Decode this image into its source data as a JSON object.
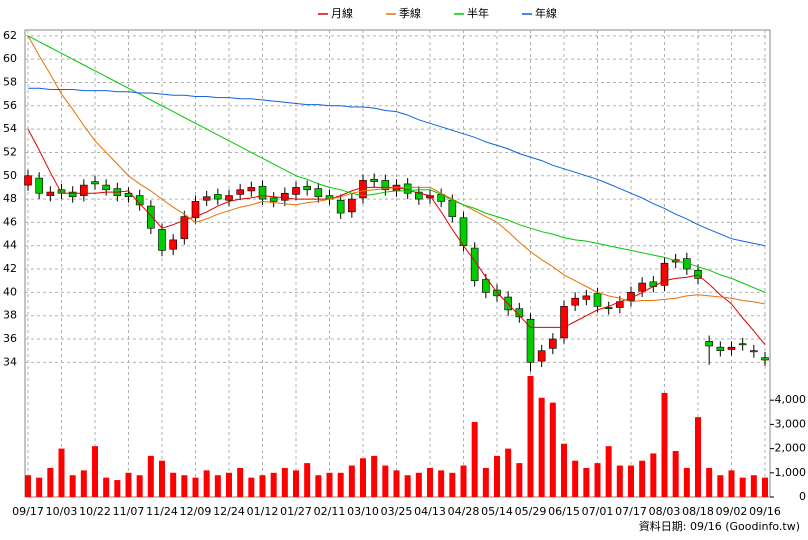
{
  "chart_data": {
    "type": "candlestick",
    "categories": [
      "09/17",
      null,
      null,
      "10/03",
      null,
      null,
      "10/22",
      null,
      null,
      "11/07",
      null,
      null,
      "11/24",
      null,
      null,
      "12/09",
      null,
      null,
      "12/24",
      null,
      null,
      "01/12",
      null,
      null,
      "01/27",
      null,
      null,
      "02/11",
      null,
      null,
      "03/10",
      null,
      null,
      "03/25",
      null,
      null,
      "04/13",
      null,
      null,
      "04/28",
      null,
      null,
      "05/14",
      null,
      null,
      "05/29",
      null,
      null,
      "06/15",
      null,
      null,
      "07/01",
      null,
      null,
      "07/17",
      null,
      null,
      "08/03",
      null,
      null,
      "08/18",
      null,
      null,
      "09/02",
      null,
      null,
      "09/16"
    ],
    "open": [
      49.2,
      49.8,
      48.3,
      48.8,
      48.6,
      48.3,
      49.5,
      49.2,
      48.9,
      48.5,
      48.3,
      47.4,
      45.4,
      43.7,
      44.6,
      46.4,
      47.9,
      48.4,
      47.9,
      48.4,
      48.7,
      49.1,
      48.1,
      47.9,
      48.4,
      49.1,
      48.9,
      48.3,
      47.9,
      46.9,
      48.1,
      49.7,
      49.6,
      48.7,
      49.3,
      48.6,
      48.1,
      48.4,
      47.9,
      46.4,
      43.8,
      41.1,
      40.2,
      39.6,
      38.6,
      37.7,
      34.1,
      35.2,
      36.1,
      38.9,
      39.4,
      39.9,
      38.7,
      38.7,
      39.3,
      40.1,
      40.9,
      40.6,
      42.6,
      42.9,
      41.9,
      35.8,
      35.3,
      35.1,
      35.6,
      35.0,
      34.4
    ],
    "high": [
      50.5,
      50.3,
      49.1,
      49.3,
      49.1,
      49.7,
      50.0,
      49.7,
      49.4,
      49.0,
      48.8,
      47.9,
      45.9,
      45.0,
      47.0,
      48.3,
      48.7,
      48.9,
      48.8,
      49.3,
      49.5,
      49.6,
      48.6,
      49.0,
      49.5,
      49.6,
      49.4,
      48.8,
      48.4,
      48.5,
      50.1,
      50.2,
      50.1,
      49.7,
      49.8,
      49.1,
      48.8,
      48.9,
      48.4,
      46.9,
      44.3,
      41.6,
      40.7,
      40.1,
      39.1,
      38.2,
      35.5,
      36.5,
      39.3,
      40.0,
      40.2,
      40.4,
      39.2,
      39.7,
      40.5,
      41.3,
      41.4,
      43.0,
      43.3,
      43.4,
      42.4,
      36.3,
      35.8,
      35.8,
      36.1,
      35.5,
      34.9
    ],
    "low": [
      48.7,
      48.0,
      47.8,
      48.0,
      47.7,
      47.8,
      48.8,
      48.3,
      47.8,
      47.7,
      47.0,
      45.0,
      43.1,
      43.2,
      44.1,
      45.9,
      47.4,
      47.5,
      47.4,
      47.9,
      48.2,
      47.5,
      47.3,
      47.4,
      47.9,
      48.3,
      47.7,
      47.5,
      46.3,
      46.4,
      47.6,
      49.0,
      48.3,
      48.2,
      48.0,
      47.5,
      47.6,
      47.3,
      46.0,
      43.5,
      40.5,
      39.5,
      39.2,
      38.0,
      37.4,
      33.2,
      33.6,
      34.7,
      35.6,
      38.4,
      38.9,
      38.3,
      38.1,
      38.2,
      38.8,
      39.6,
      40.0,
      40.1,
      42.1,
      41.5,
      40.7,
      33.8,
      34.5,
      34.6,
      35.0,
      34.4,
      33.7
    ],
    "close": [
      50,
      48.5,
      48.6,
      48.5,
      48.2,
      49.2,
      49.3,
      48.8,
      48.3,
      48.2,
      47.5,
      45.5,
      43.6,
      44.5,
      46.5,
      47.8,
      48.2,
      48.0,
      48.3,
      48.8,
      49.0,
      48.0,
      47.8,
      48.5,
      49.0,
      48.8,
      48.2,
      48.0,
      46.8,
      48.0,
      49.6,
      49.5,
      48.8,
      49.2,
      48.5,
      48.0,
      48.3,
      47.8,
      46.5,
      44.0,
      41.0,
      40.0,
      39.7,
      38.5,
      37.9,
      34.0,
      35.0,
      36.0,
      38.8,
      39.5,
      39.7,
      38.8,
      38.6,
      39.2,
      40.0,
      40.8,
      40.5,
      42.5,
      42.8,
      42.0,
      41.2,
      35.4,
      35.0,
      35.3,
      35.5,
      34.9,
      34.2
    ],
    "up_color": "#ff0000",
    "down_color": "#00cc00",
    "series": [
      {
        "name": "月線",
        "color": "#dd0000",
        "values": [
          54,
          52.2,
          50.3,
          48.5,
          48.5,
          48.5,
          48.5,
          48.6,
          48.6,
          48.7,
          47.6,
          46.6,
          45.5,
          45.8,
          46.2,
          46.5,
          46.9,
          47.4,
          47.8,
          48.0,
          48.1,
          48.3,
          48.2,
          48.1,
          48.0,
          48.0,
          48.0,
          48.0,
          48.3,
          48.7,
          49.0,
          49.0,
          49.0,
          49.0,
          48.8,
          48.5,
          48.3,
          46.9,
          45.4,
          44.0,
          42.7,
          41.3,
          40.0,
          39.0,
          38.0,
          37.0,
          37.0,
          37.0,
          37.0,
          37.5,
          38.0,
          38.5,
          38.8,
          39.2,
          39.5,
          40.0,
          40.5,
          41.0,
          41.2,
          41.3,
          41.5,
          40.7,
          39.8,
          39.0,
          37.8,
          36.7,
          35.5
        ]
      },
      {
        "name": "季線",
        "color": "#e87000",
        "values": [
          62,
          60.3,
          58.7,
          57,
          55.7,
          54.3,
          53,
          52,
          51,
          50,
          49.3,
          48.7,
          48,
          47.3,
          46.7,
          46,
          46.3,
          46.7,
          47,
          47.3,
          47.5,
          47.8,
          47.7,
          47.6,
          47.5,
          47.7,
          47.8,
          48,
          48.2,
          48.5,
          48.7,
          48.8,
          48.9,
          49,
          49,
          49,
          49,
          48.5,
          48,
          47.5,
          47,
          46.5,
          46,
          45.2,
          44.3,
          43.5,
          42.8,
          42.2,
          41.5,
          41,
          40.5,
          40,
          39.7,
          39.5,
          39.2,
          39.3,
          39.3,
          39.4,
          39.5,
          39.7,
          39.8,
          39.7,
          39.6,
          39.5,
          39.3,
          39.2,
          39
        ]
      },
      {
        "name": "半年",
        "color": "#00c800",
        "values": [
          62,
          61.5,
          61,
          60.5,
          60,
          59.5,
          59,
          58.5,
          58,
          57.5,
          57,
          56.5,
          56,
          55.5,
          55,
          54.5,
          54,
          53.5,
          53,
          52.5,
          52,
          51.5,
          51,
          50.5,
          50,
          49.7,
          49.3,
          49,
          48.8,
          48.5,
          48.3,
          48.4,
          48.6,
          48.7,
          48.7,
          48.8,
          48.8,
          48.4,
          47.9,
          47.5,
          47.2,
          46.8,
          46.5,
          46.2,
          45.8,
          45.5,
          45.2,
          45,
          44.7,
          44.5,
          44.4,
          44.2,
          44,
          43.8,
          43.6,
          43.4,
          43.2,
          43,
          42.7,
          42.5,
          42.2,
          41.9,
          41.5,
          41.2,
          40.8,
          40.4,
          40
        ]
      },
      {
        "name": "年線",
        "color": "#1060e0",
        "values": [
          57.5,
          57.5,
          57.4,
          57.4,
          57.4,
          57.3,
          57.3,
          57.3,
          57.2,
          57.2,
          57.1,
          57.1,
          57,
          56.9,
          56.9,
          56.8,
          56.8,
          56.7,
          56.7,
          56.6,
          56.6,
          56.5,
          56.4,
          56.3,
          56.2,
          56.1,
          56.1,
          56,
          56,
          55.9,
          55.9,
          55.8,
          55.6,
          55.5,
          55.2,
          54.8,
          54.5,
          54.2,
          53.9,
          53.6,
          53.3,
          52.9,
          52.6,
          52.3,
          51.9,
          51.6,
          51.3,
          50.9,
          50.6,
          50.3,
          50,
          49.7,
          49.3,
          48.9,
          48.5,
          48.1,
          47.6,
          47.2,
          46.7,
          46.3,
          45.8,
          45.4,
          45,
          44.6,
          44.4,
          44.2,
          44
        ]
      }
    ],
    "ylim": [
      33,
      62.5
    ],
    "yticks": [
      34,
      36,
      38,
      40,
      42,
      44,
      46,
      48,
      50,
      52,
      54,
      56,
      58,
      60,
      62
    ],
    "grid": true,
    "volume": {
      "color": "#ff0000",
      "values": [
        900,
        800,
        1200,
        2000,
        900,
        1100,
        2100,
        800,
        700,
        1000,
        900,
        1700,
        1500,
        1000,
        900,
        800,
        1100,
        900,
        1000,
        1200,
        800,
        900,
        1000,
        1200,
        1100,
        1400,
        900,
        1000,
        1000,
        1300,
        1600,
        1700,
        1300,
        1100,
        900,
        1000,
        1200,
        1100,
        1000,
        1300,
        3100,
        1200,
        1700,
        2000,
        1400,
        5000,
        4100,
        3900,
        2200,
        1500,
        1200,
        1400,
        2100,
        1300,
        1300,
        1500,
        1800,
        4300,
        1900,
        1200,
        3300,
        1200,
        900,
        1100,
        800,
        900,
        800
      ],
      "ylim": [
        0,
        5000
      ],
      "yticks": [
        0,
        {
          "value": 1000,
          "label": "1,000"
        },
        {
          "value": 2000,
          "label": "2,000"
        },
        {
          "value": 3000,
          "label": "3,000"
        },
        {
          "value": 4000,
          "label": "4,000"
        }
      ]
    },
    "source_note": "資料日期: 09/16  (Goodinfo.tw)"
  }
}
